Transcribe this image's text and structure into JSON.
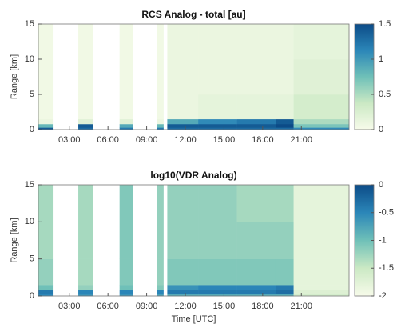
{
  "chart_data": [
    {
      "type": "heatmap",
      "title": "RCS Analog - total [au]",
      "ylabel": "Range [km]",
      "x_bins": [
        0.6,
        1.7,
        3.7,
        4.8,
        6.9,
        7.9,
        9.8,
        10.3,
        10.6,
        13,
        16,
        19,
        20.4,
        24.7
      ],
      "y_bins": [
        0,
        0.3,
        0.8,
        1.5,
        5,
        10,
        15
      ],
      "z": [
        [
          1.4,
          null,
          1.3,
          null,
          1.2,
          null,
          1.2,
          null,
          1.3,
          1.3,
          1.3,
          1.3,
          1.1
        ],
        [
          0.8,
          null,
          1.4,
          null,
          0.9,
          null,
          0.8,
          null,
          1.4,
          1.4,
          1.4,
          1.5,
          0.7
        ],
        [
          0.1,
          null,
          0.2,
          null,
          0.2,
          null,
          0.1,
          null,
          0.9,
          1.1,
          1.2,
          1.4,
          0.5
        ],
        [
          0.05,
          null,
          0.05,
          null,
          0.05,
          null,
          0.05,
          null,
          0.1,
          0.15,
          0.15,
          0.15,
          0.3
        ],
        [
          0.05,
          null,
          0.05,
          null,
          0.05,
          null,
          0.05,
          null,
          0.1,
          0.1,
          0.1,
          0.1,
          0.2
        ],
        [
          0.05,
          null,
          0.05,
          null,
          0.05,
          null,
          0.05,
          null,
          0.1,
          0.1,
          0.1,
          0.1,
          0.15
        ]
      ],
      "xlim": [
        0.6,
        24.7
      ],
      "ylim": [
        0,
        15
      ],
      "yticks": [
        0,
        5,
        10,
        15
      ],
      "xticks": [
        {
          "value": 3,
          "label": "03:00"
        },
        {
          "value": 6,
          "label": "06:00"
        },
        {
          "value": 9,
          "label": "09:00"
        },
        {
          "value": 12,
          "label": "12:00"
        },
        {
          "value": 15,
          "label": "15:00"
        },
        {
          "value": 18,
          "label": "18:00"
        },
        {
          "value": 21,
          "label": "21:00"
        }
      ],
      "clim": [
        0,
        1.5
      ],
      "cticks": [
        0,
        0.5,
        1,
        1.5
      ],
      "colormap": [
        "#f7fbea",
        "#cbe9c4",
        "#6fc0b8",
        "#2b86b8",
        "#0c4b87"
      ]
    },
    {
      "type": "heatmap",
      "title": "log10(VDR Analog)",
      "ylabel": "Range [km]",
      "xlabel": "Time [UTC]",
      "x_bins": [
        0.6,
        1.7,
        3.7,
        4.8,
        6.9,
        7.9,
        9.8,
        10.3,
        10.6,
        13,
        16,
        19,
        20.4,
        24.7
      ],
      "y_bins": [
        0,
        0.3,
        0.8,
        1.5,
        5,
        10,
        15
      ],
      "z": [
        [
          -0.5,
          null,
          -0.6,
          null,
          -0.6,
          null,
          -0.7,
          null,
          -0.8,
          -0.8,
          -0.8,
          -0.8,
          -1.6
        ],
        [
          -0.4,
          null,
          -0.5,
          null,
          -0.5,
          null,
          -0.5,
          null,
          -0.4,
          -0.4,
          -0.4,
          -0.3,
          -1.7
        ],
        [
          -1.0,
          null,
          -1.2,
          null,
          -1.0,
          null,
          -1.1,
          null,
          -0.6,
          -0.5,
          -0.5,
          -0.4,
          -1.8
        ],
        [
          -1.2,
          null,
          -1.3,
          null,
          -1.1,
          null,
          -1.2,
          null,
          -1.1,
          -1.1,
          -1.1,
          -1.1,
          -1.8
        ],
        [
          -1.3,
          null,
          -1.3,
          null,
          -1.1,
          null,
          -1.2,
          null,
          -1.2,
          -1.2,
          -1.2,
          -1.2,
          -1.8
        ],
        [
          -1.3,
          null,
          -1.3,
          null,
          -1.1,
          null,
          -1.2,
          null,
          -1.2,
          -1.2,
          -1.3,
          -1.3,
          -1.8
        ]
      ],
      "xlim": [
        0.6,
        24.7
      ],
      "ylim": [
        0,
        15
      ],
      "yticks": [
        0,
        5,
        10,
        15
      ],
      "xticks": [
        {
          "value": 3,
          "label": "03:00"
        },
        {
          "value": 6,
          "label": "06:00"
        },
        {
          "value": 9,
          "label": "09:00"
        },
        {
          "value": 12,
          "label": "12:00"
        },
        {
          "value": 15,
          "label": "15:00"
        },
        {
          "value": 18,
          "label": "18:00"
        },
        {
          "value": 21,
          "label": "21:00"
        }
      ],
      "clim": [
        -2,
        0
      ],
      "cticks": [
        -2,
        -1.5,
        -1,
        -0.5,
        0
      ],
      "colormap": [
        "#f7fbea",
        "#cbe9c4",
        "#6fc0b8",
        "#2b86b8",
        "#0c4b87"
      ]
    }
  ]
}
